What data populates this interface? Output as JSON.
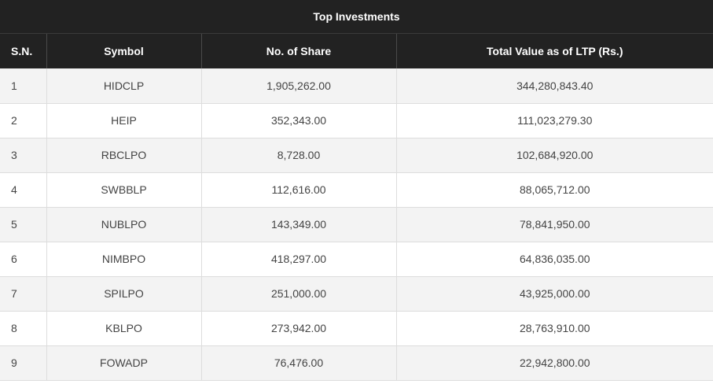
{
  "table": {
    "title": "Top Investments",
    "headers": {
      "sn": "S.N.",
      "symbol": "Symbol",
      "shares": "No. of Share",
      "value": "Total Value as of LTP (Rs.)"
    },
    "rows": [
      {
        "sn": "1",
        "symbol": "HIDCLP",
        "shares": "1,905,262.00",
        "value": "344,280,843.40"
      },
      {
        "sn": "2",
        "symbol": "HEIP",
        "shares": "352,343.00",
        "value": "111,023,279.30"
      },
      {
        "sn": "3",
        "symbol": "RBCLPO",
        "shares": "8,728.00",
        "value": "102,684,920.00"
      },
      {
        "sn": "4",
        "symbol": "SWBBLP",
        "shares": "112,616.00",
        "value": "88,065,712.00"
      },
      {
        "sn": "5",
        "symbol": "NUBLPO",
        "shares": "143,349.00",
        "value": "78,841,950.00"
      },
      {
        "sn": "6",
        "symbol": "NIMBPO",
        "shares": "418,297.00",
        "value": "64,836,035.00"
      },
      {
        "sn": "7",
        "symbol": "SPILPO",
        "shares": "251,000.00",
        "value": "43,925,000.00"
      },
      {
        "sn": "8",
        "symbol": "KBLPO",
        "shares": "273,942.00",
        "value": "28,763,910.00"
      },
      {
        "sn": "9",
        "symbol": "FOWADP",
        "shares": "76,476.00",
        "value": "22,942,800.00"
      }
    ]
  }
}
